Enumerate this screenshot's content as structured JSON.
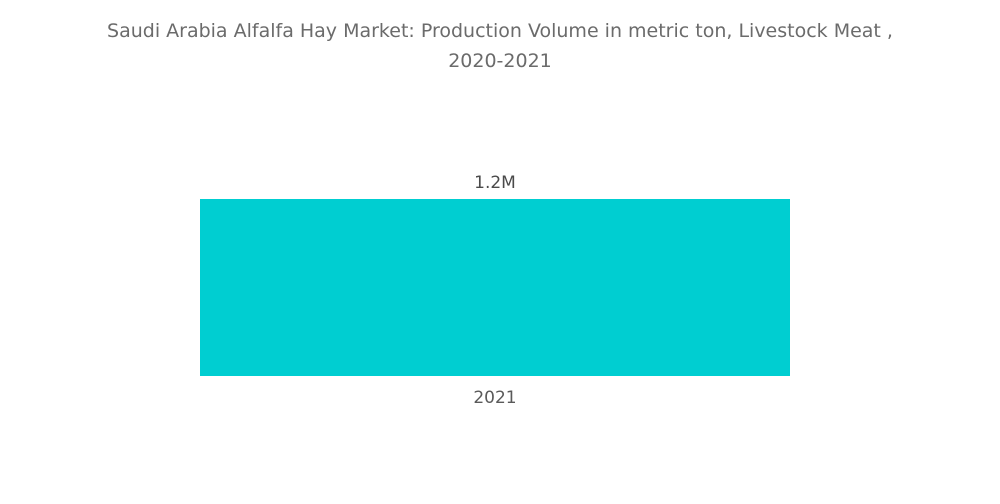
{
  "chart_data": {
    "type": "bar",
    "title_lines": [
      "Saudi Arabia Alfalfa Hay Market: Production Volume in metric ton, Livestock Meat ,",
      "2020-2021"
    ],
    "categories": [
      "2021"
    ],
    "values": [
      1200000
    ],
    "data_labels": [
      "1.2M"
    ],
    "xlabel": "",
    "ylabel": "",
    "ylim": [
      0,
      1200000
    ],
    "grid": false,
    "legend": "none",
    "colors": {
      "bar": "#00CED1"
    }
  }
}
